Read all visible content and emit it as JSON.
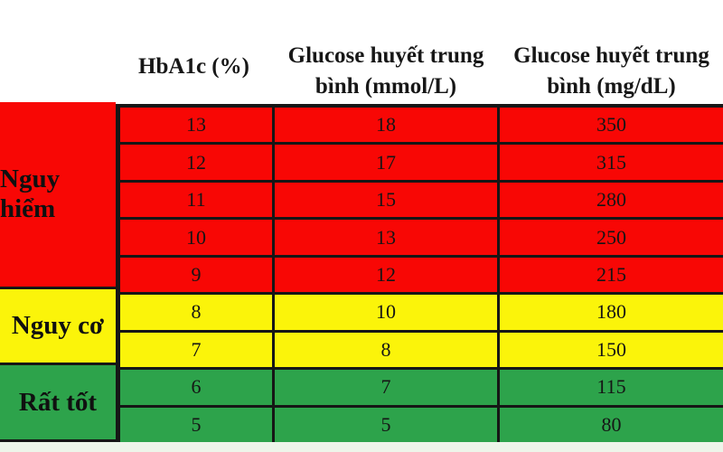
{
  "header": {
    "col1": "HbA1c (%)",
    "col2_line1": "Glucose huyết trung",
    "col2_line2": "bình (mmol/L)",
    "col3_line1": "Glucose huyết trung",
    "col3_line2": "bình (mg/dL)"
  },
  "colors": {
    "background": "#ffffff",
    "border": "#161616",
    "text": "#151515",
    "danger_red": "#f80705",
    "risk_yellow": "#fbf40a",
    "good_green": "#2da34b",
    "bottom_strip": "#eef5ea"
  },
  "chart_data": {
    "type": "table",
    "title": "",
    "columns": [
      "",
      "HbA1c (%)",
      "Glucose huyết trung bình (mmol/L)",
      "Glucose huyết trung bình (mg/dL)"
    ],
    "row_groups": [
      {
        "category": "Nguy hiểm",
        "color": "#f80705",
        "rows": [
          [
            13,
            18,
            350
          ],
          [
            12,
            17,
            315
          ],
          [
            11,
            15,
            280
          ],
          [
            10,
            13,
            250
          ],
          [
            9,
            12,
            215
          ]
        ]
      },
      {
        "category": "Nguy cơ",
        "color": "#fbf40a",
        "rows": [
          [
            8,
            10,
            180
          ],
          [
            7,
            8,
            150
          ]
        ]
      },
      {
        "category": "Rất tốt",
        "color": "#2da34b",
        "rows": [
          [
            6,
            7,
            115
          ],
          [
            5,
            5,
            80
          ]
        ]
      }
    ]
  }
}
